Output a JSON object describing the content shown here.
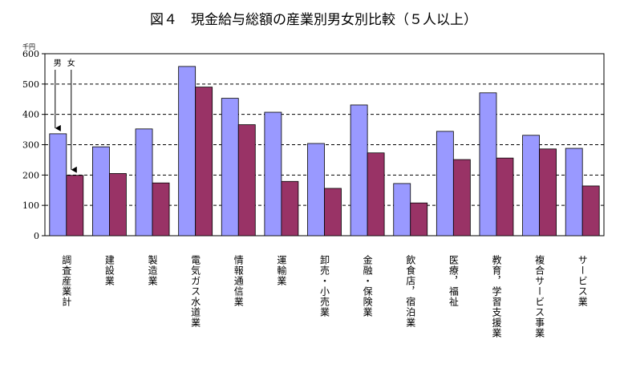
{
  "chart_data": {
    "type": "bar",
    "title": "図４　現金給与総額の産業別男女別比較（５人以上）",
    "ylabel": "千円",
    "ylim": [
      0,
      600
    ],
    "yticks": [
      0,
      100,
      200,
      300,
      400,
      500,
      600
    ],
    "grid": true,
    "legend": "top-left",
    "categories": [
      "調査産業計",
      "建設業",
      "製造業",
      "電気ガス水道業",
      "情報通信業",
      "運輸業",
      "卸売・小売業",
      "金融・保険業",
      "飲食店，宿泊業",
      "医療，福祉",
      "教育，学習支援業",
      "複合サービス事業",
      "サービス業"
    ],
    "series": [
      {
        "name": "男",
        "color": "#9999ff",
        "values": [
          336,
          293,
          352,
          558,
          453,
          407,
          304,
          431,
          172,
          344,
          471,
          331,
          288
        ]
      },
      {
        "name": "女",
        "color": "#993366",
        "values": [
          199,
          205,
          174,
          490,
          366,
          179,
          156,
          273,
          108,
          251,
          256,
          286,
          164
        ]
      }
    ]
  }
}
